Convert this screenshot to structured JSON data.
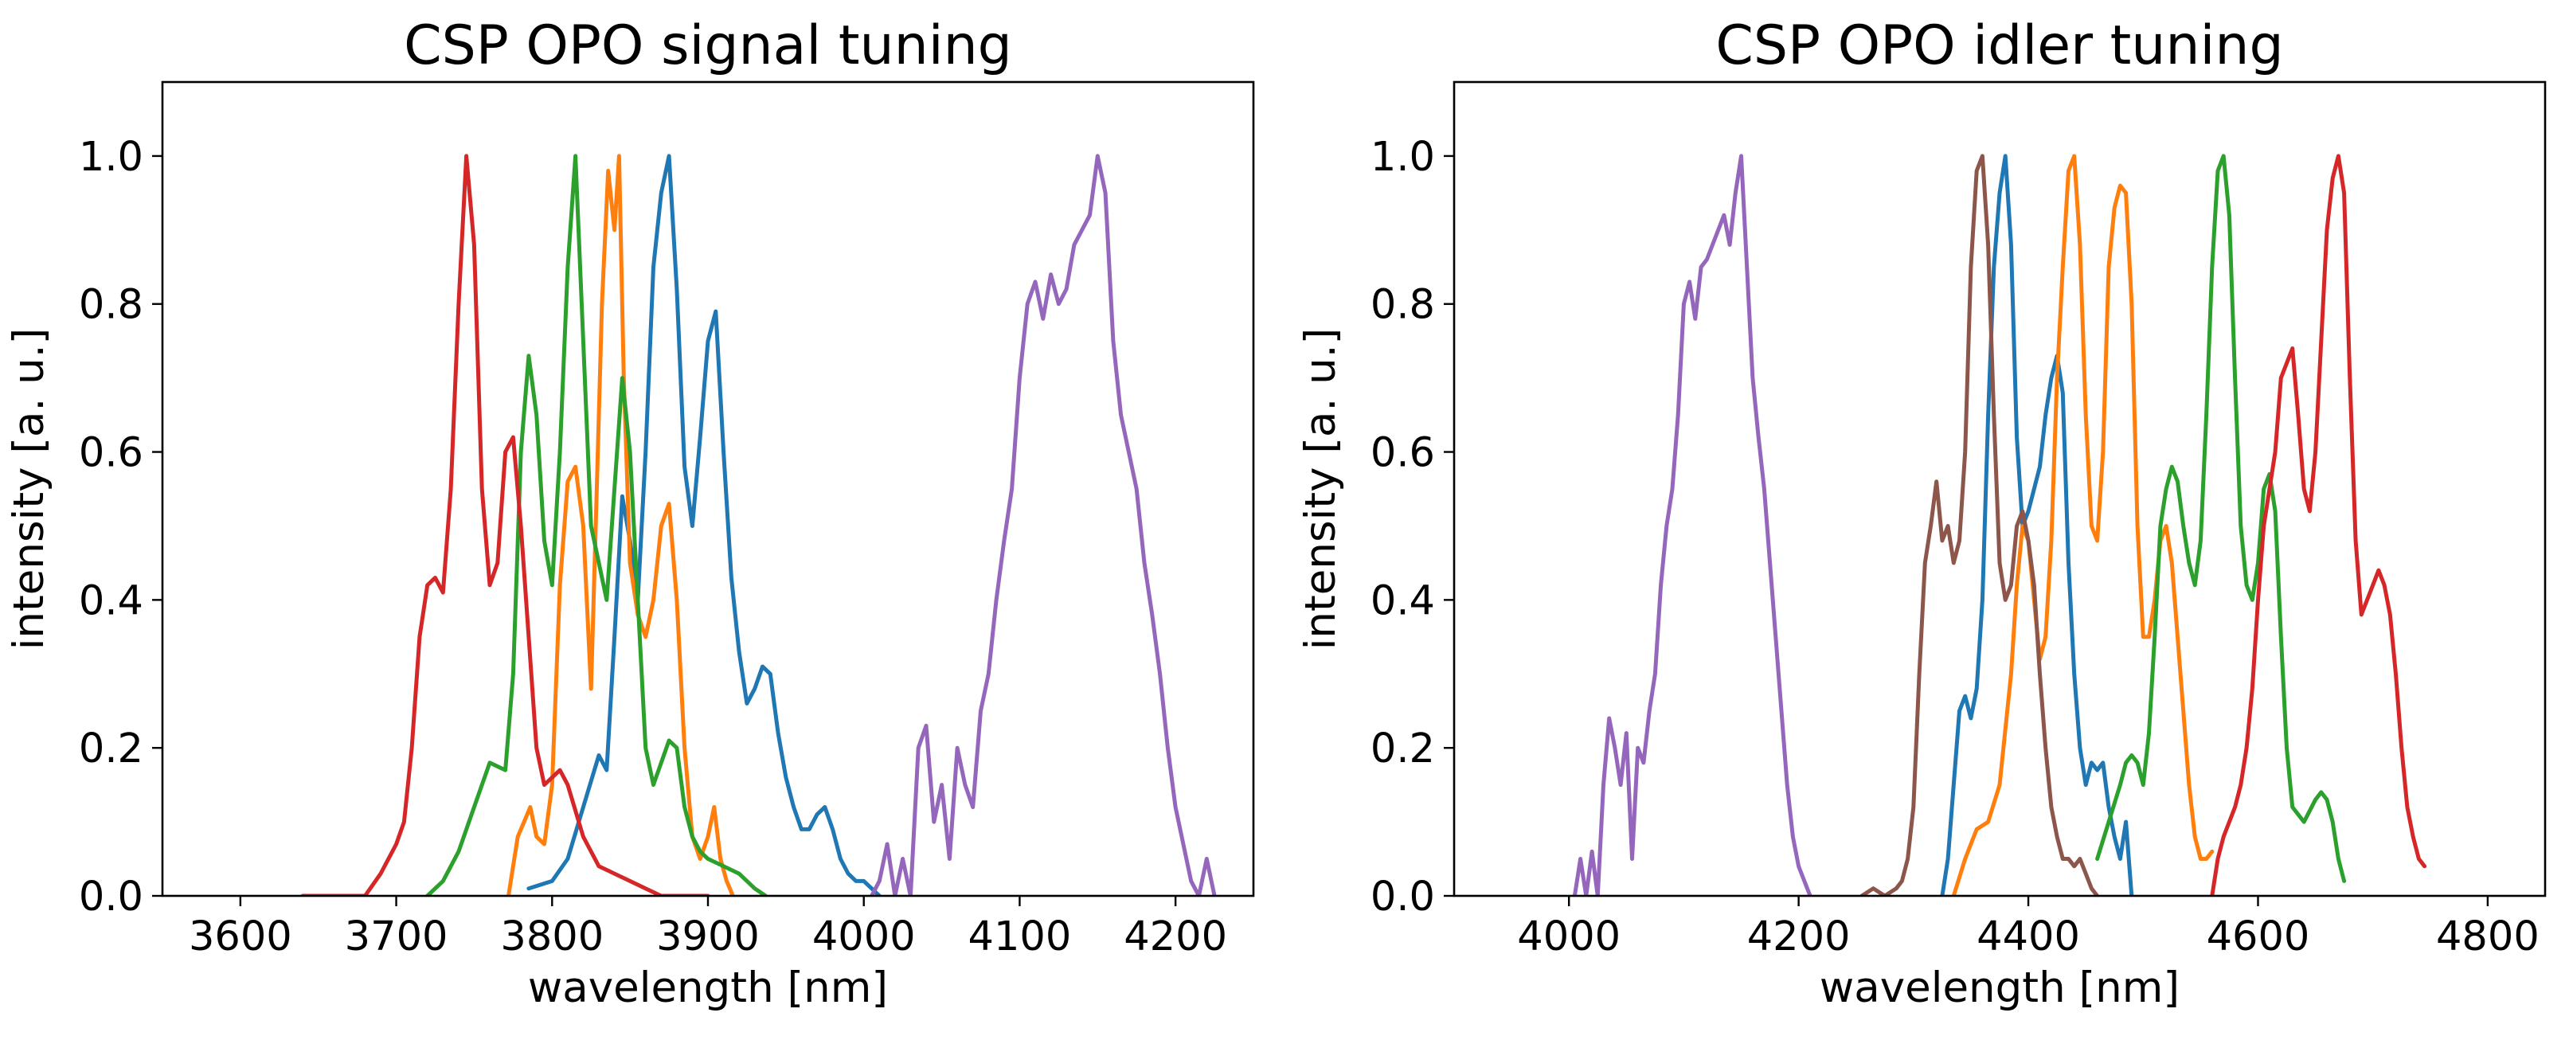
{
  "chart_data": [
    {
      "type": "line",
      "title": "CSP OPO signal tuning",
      "xlabel": "wavelength [nm]",
      "ylabel": "intensity [a. u.]",
      "xlim": [
        3550,
        4250
      ],
      "ylim": [
        0.0,
        1.1
      ],
      "xticks": [
        3600,
        3700,
        3800,
        3900,
        4000,
        4100,
        4200
      ],
      "yticks": [
        0.0,
        0.2,
        0.4,
        0.6,
        0.8,
        1.0
      ],
      "xtick_labels": [
        "3600",
        "3700",
        "3800",
        "3900",
        "4000",
        "4100",
        "4200"
      ],
      "ytick_labels": [
        "0.0",
        "0.2",
        "0.4",
        "0.6",
        "0.8",
        "1.0"
      ],
      "series": [
        {
          "name": "blue",
          "color": "#1f77b4",
          "x": [
            3785,
            3800,
            3810,
            3820,
            3830,
            3835,
            3840,
            3845,
            3850,
            3855,
            3860,
            3865,
            3870,
            3875,
            3880,
            3885,
            3890,
            3895,
            3900,
            3905,
            3910,
            3915,
            3920,
            3925,
            3930,
            3935,
            3940,
            3945,
            3950,
            3955,
            3960,
            3965,
            3970,
            3975,
            3980,
            3985,
            3990,
            3995,
            4000,
            4005,
            4010
          ],
          "y": [
            0.01,
            0.02,
            0.05,
            0.12,
            0.19,
            0.17,
            0.35,
            0.54,
            0.48,
            0.4,
            0.6,
            0.85,
            0.95,
            1.0,
            0.82,
            0.58,
            0.5,
            0.62,
            0.75,
            0.79,
            0.6,
            0.43,
            0.33,
            0.26,
            0.28,
            0.31,
            0.3,
            0.22,
            0.16,
            0.12,
            0.09,
            0.09,
            0.11,
            0.12,
            0.09,
            0.05,
            0.03,
            0.02,
            0.02,
            0.01,
            0.0
          ]
        },
        {
          "name": "orange",
          "color": "#ff7f0e",
          "x": [
            3772,
            3778,
            3782,
            3786,
            3790,
            3795,
            3800,
            3805,
            3810,
            3815,
            3820,
            3825,
            3828,
            3832,
            3836,
            3840,
            3843,
            3846,
            3850,
            3855,
            3860,
            3865,
            3870,
            3875,
            3880,
            3885,
            3890,
            3895,
            3900,
            3904,
            3908,
            3912,
            3916
          ],
          "y": [
            0.0,
            0.08,
            0.1,
            0.12,
            0.08,
            0.07,
            0.15,
            0.42,
            0.56,
            0.58,
            0.5,
            0.28,
            0.5,
            0.8,
            0.98,
            0.9,
            1.0,
            0.7,
            0.45,
            0.38,
            0.35,
            0.4,
            0.5,
            0.53,
            0.4,
            0.2,
            0.08,
            0.05,
            0.08,
            0.12,
            0.05,
            0.02,
            0.0
          ]
        },
        {
          "name": "green",
          "color": "#2ca02c",
          "x": [
            3720,
            3730,
            3740,
            3750,
            3760,
            3770,
            3775,
            3780,
            3785,
            3790,
            3795,
            3800,
            3805,
            3810,
            3815,
            3820,
            3825,
            3830,
            3835,
            3840,
            3845,
            3850,
            3855,
            3860,
            3865,
            3870,
            3875,
            3880,
            3885,
            3890,
            3895,
            3900,
            3910,
            3920,
            3930,
            3937
          ],
          "y": [
            0.0,
            0.02,
            0.06,
            0.12,
            0.18,
            0.17,
            0.3,
            0.6,
            0.73,
            0.65,
            0.48,
            0.42,
            0.6,
            0.85,
            1.0,
            0.75,
            0.5,
            0.45,
            0.4,
            0.55,
            0.7,
            0.6,
            0.4,
            0.2,
            0.15,
            0.18,
            0.21,
            0.2,
            0.12,
            0.08,
            0.06,
            0.05,
            0.04,
            0.03,
            0.01,
            0.0
          ]
        },
        {
          "name": "red",
          "color": "#d62728",
          "x": [
            3640,
            3660,
            3680,
            3690,
            3700,
            3705,
            3710,
            3715,
            3720,
            3725,
            3730,
            3735,
            3740,
            3745,
            3750,
            3755,
            3760,
            3765,
            3770,
            3775,
            3780,
            3785,
            3790,
            3795,
            3800,
            3805,
            3810,
            3820,
            3830,
            3840,
            3850,
            3860,
            3870,
            3880,
            3890,
            3900
          ],
          "y": [
            0.0,
            0.0,
            0.0,
            0.03,
            0.07,
            0.1,
            0.2,
            0.35,
            0.42,
            0.43,
            0.41,
            0.55,
            0.8,
            1.0,
            0.88,
            0.55,
            0.42,
            0.45,
            0.6,
            0.62,
            0.5,
            0.35,
            0.2,
            0.15,
            0.16,
            0.17,
            0.15,
            0.08,
            0.04,
            0.03,
            0.02,
            0.01,
            0.0,
            0.0,
            0.0,
            0.0
          ]
        },
        {
          "name": "purple",
          "color": "#9467bd",
          "x": [
            4005,
            4010,
            4015,
            4020,
            4025,
            4030,
            4035,
            4040,
            4045,
            4050,
            4055,
            4060,
            4065,
            4070,
            4075,
            4080,
            4085,
            4090,
            4095,
            4100,
            4105,
            4110,
            4115,
            4120,
            4125,
            4130,
            4135,
            4140,
            4145,
            4150,
            4155,
            4160,
            4165,
            4170,
            4175,
            4180,
            4185,
            4190,
            4195,
            4200,
            4205,
            4210,
            4215,
            4220,
            4225
          ],
          "y": [
            0.0,
            0.02,
            0.07,
            0.0,
            0.05,
            0.0,
            0.2,
            0.23,
            0.1,
            0.15,
            0.05,
            0.2,
            0.15,
            0.12,
            0.25,
            0.3,
            0.4,
            0.48,
            0.55,
            0.7,
            0.8,
            0.83,
            0.78,
            0.84,
            0.8,
            0.82,
            0.88,
            0.9,
            0.92,
            1.0,
            0.95,
            0.75,
            0.65,
            0.6,
            0.55,
            0.45,
            0.38,
            0.3,
            0.2,
            0.12,
            0.07,
            0.02,
            0.0,
            0.05,
            0.0
          ]
        }
      ]
    },
    {
      "type": "line",
      "title": "CSP OPO idler tuning",
      "xlabel": "wavelength [nm]",
      "ylabel": "intensity [a. u.]",
      "xlim": [
        3900,
        4850
      ],
      "ylim": [
        0.0,
        1.1
      ],
      "xticks": [
        4000,
        4200,
        4400,
        4600,
        4800
      ],
      "yticks": [
        0.0,
        0.2,
        0.4,
        0.6,
        0.8,
        1.0
      ],
      "xtick_labels": [
        "4000",
        "4200",
        "4400",
        "4600",
        "4800"
      ],
      "ytick_labels": [
        "0.0",
        "0.2",
        "0.4",
        "0.6",
        "0.8",
        "1.0"
      ],
      "series": [
        {
          "name": "blue",
          "color": "#1f77b4",
          "x": [
            4325,
            4330,
            4335,
            4340,
            4345,
            4350,
            4355,
            4360,
            4365,
            4370,
            4375,
            4380,
            4385,
            4390,
            4395,
            4400,
            4405,
            4410,
            4415,
            4420,
            4425,
            4430,
            4435,
            4440,
            4445,
            4450,
            4455,
            4460,
            4465,
            4470,
            4475,
            4480,
            4485,
            4490
          ],
          "y": [
            0.0,
            0.05,
            0.15,
            0.25,
            0.27,
            0.24,
            0.28,
            0.4,
            0.65,
            0.85,
            0.95,
            1.0,
            0.88,
            0.62,
            0.5,
            0.52,
            0.55,
            0.58,
            0.65,
            0.7,
            0.73,
            0.68,
            0.45,
            0.3,
            0.2,
            0.15,
            0.18,
            0.17,
            0.18,
            0.12,
            0.08,
            0.05,
            0.1,
            0.0
          ]
        },
        {
          "name": "orange",
          "color": "#ff7f0e",
          "x": [
            4335,
            4345,
            4355,
            4365,
            4375,
            4385,
            4390,
            4395,
            4400,
            4405,
            4410,
            4415,
            4420,
            4425,
            4430,
            4435,
            4440,
            4445,
            4450,
            4455,
            4460,
            4465,
            4470,
            4475,
            4480,
            4485,
            4490,
            4495,
            4500,
            4505,
            4510,
            4515,
            4520,
            4525,
            4530,
            4535,
            4540,
            4545,
            4550,
            4555,
            4560
          ],
          "y": [
            0.0,
            0.05,
            0.09,
            0.1,
            0.15,
            0.3,
            0.42,
            0.5,
            0.48,
            0.4,
            0.32,
            0.35,
            0.48,
            0.7,
            0.85,
            0.98,
            1.0,
            0.88,
            0.65,
            0.5,
            0.48,
            0.6,
            0.85,
            0.93,
            0.96,
            0.95,
            0.8,
            0.5,
            0.35,
            0.35,
            0.4,
            0.48,
            0.5,
            0.45,
            0.35,
            0.25,
            0.15,
            0.08,
            0.05,
            0.05,
            0.06
          ]
        },
        {
          "name": "green",
          "color": "#2ca02c",
          "x": [
            4460,
            4470,
            4480,
            4485,
            4490,
            4495,
            4500,
            4505,
            4510,
            4515,
            4520,
            4525,
            4530,
            4535,
            4540,
            4545,
            4550,
            4555,
            4560,
            4565,
            4570,
            4575,
            4580,
            4585,
            4590,
            4595,
            4600,
            4605,
            4610,
            4615,
            4620,
            4625,
            4630,
            4640,
            4650,
            4655,
            4660,
            4665,
            4670,
            4675
          ],
          "y": [
            0.05,
            0.1,
            0.15,
            0.18,
            0.19,
            0.18,
            0.15,
            0.22,
            0.35,
            0.5,
            0.55,
            0.58,
            0.56,
            0.5,
            0.45,
            0.42,
            0.48,
            0.65,
            0.85,
            0.98,
            1.0,
            0.92,
            0.7,
            0.5,
            0.42,
            0.4,
            0.45,
            0.55,
            0.57,
            0.52,
            0.35,
            0.2,
            0.12,
            0.1,
            0.13,
            0.14,
            0.13,
            0.1,
            0.05,
            0.02
          ]
        },
        {
          "name": "red",
          "color": "#d62728",
          "x": [
            4560,
            4565,
            4570,
            4575,
            4580,
            4585,
            4590,
            4595,
            4600,
            4605,
            4610,
            4615,
            4620,
            4625,
            4630,
            4635,
            4640,
            4645,
            4650,
            4655,
            4660,
            4665,
            4670,
            4675,
            4680,
            4685,
            4690,
            4695,
            4700,
            4705,
            4710,
            4715,
            4720,
            4725,
            4730,
            4735,
            4740,
            4745
          ],
          "y": [
            0.0,
            0.05,
            0.08,
            0.1,
            0.12,
            0.15,
            0.2,
            0.28,
            0.4,
            0.5,
            0.55,
            0.6,
            0.7,
            0.72,
            0.74,
            0.65,
            0.55,
            0.52,
            0.6,
            0.75,
            0.9,
            0.97,
            1.0,
            0.95,
            0.7,
            0.48,
            0.38,
            0.4,
            0.42,
            0.44,
            0.42,
            0.38,
            0.3,
            0.2,
            0.12,
            0.08,
            0.05,
            0.04
          ]
        },
        {
          "name": "purple",
          "color": "#9467bd",
          "x": [
            4005,
            4010,
            4015,
            4020,
            4025,
            4030,
            4035,
            4040,
            4045,
            4050,
            4055,
            4060,
            4065,
            4070,
            4075,
            4080,
            4085,
            4090,
            4095,
            4100,
            4105,
            4110,
            4115,
            4120,
            4125,
            4130,
            4135,
            4140,
            4145,
            4150,
            4155,
            4160,
            4165,
            4170,
            4175,
            4180,
            4185,
            4190,
            4195,
            4200,
            4205,
            4210
          ],
          "y": [
            0.0,
            0.05,
            0.0,
            0.06,
            0.0,
            0.15,
            0.24,
            0.2,
            0.15,
            0.22,
            0.05,
            0.2,
            0.18,
            0.25,
            0.3,
            0.42,
            0.5,
            0.55,
            0.65,
            0.8,
            0.83,
            0.78,
            0.85,
            0.86,
            0.88,
            0.9,
            0.92,
            0.88,
            0.95,
            1.0,
            0.85,
            0.7,
            0.62,
            0.55,
            0.45,
            0.35,
            0.25,
            0.15,
            0.08,
            0.04,
            0.02,
            0.0
          ]
        },
        {
          "name": "brown",
          "color": "#8c564b",
          "x": [
            4255,
            4265,
            4275,
            4285,
            4290,
            4295,
            4300,
            4305,
            4310,
            4315,
            4320,
            4325,
            4330,
            4335,
            4340,
            4345,
            4350,
            4355,
            4360,
            4365,
            4370,
            4375,
            4380,
            4385,
            4390,
            4395,
            4400,
            4405,
            4410,
            4415,
            4420,
            4425,
            4430,
            4435,
            4440,
            4445,
            4450,
            4455,
            4460
          ],
          "y": [
            0.0,
            0.01,
            0.0,
            0.01,
            0.02,
            0.05,
            0.12,
            0.3,
            0.45,
            0.5,
            0.56,
            0.48,
            0.5,
            0.45,
            0.48,
            0.6,
            0.85,
            0.98,
            1.0,
            0.88,
            0.65,
            0.45,
            0.4,
            0.42,
            0.5,
            0.52,
            0.48,
            0.42,
            0.3,
            0.2,
            0.12,
            0.08,
            0.05,
            0.05,
            0.04,
            0.05,
            0.03,
            0.01,
            0.0
          ]
        }
      ]
    }
  ]
}
